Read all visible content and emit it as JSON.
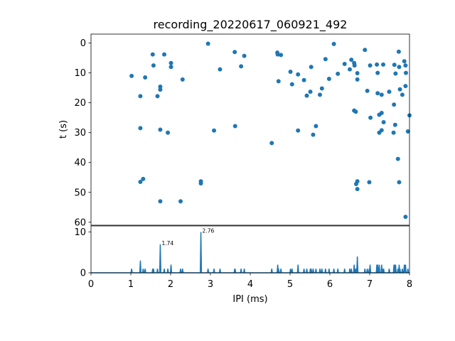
{
  "chart_data": [
    {
      "type": "scatter",
      "title": "recording_20220617_060921_492",
      "ylabel": "t (s)",
      "xlim": [
        0,
        8
      ],
      "ylim": [
        61,
        -3
      ],
      "y_inverted": true,
      "yticks": [
        "0",
        "10",
        "20",
        "30",
        "40",
        "50",
        "60"
      ],
      "marker_color": "#1f77b4",
      "points": [
        [
          1.02,
          11
        ],
        [
          1.24,
          17.8
        ],
        [
          1.24,
          28.5
        ],
        [
          1.24,
          46.5
        ],
        [
          1.31,
          45.5
        ],
        [
          1.36,
          11.5
        ],
        [
          1.55,
          3.8
        ],
        [
          1.57,
          7.5
        ],
        [
          1.67,
          17.8
        ],
        [
          1.74,
          14.6
        ],
        [
          1.74,
          15.6
        ],
        [
          1.74,
          29.0
        ],
        [
          1.74,
          53.0
        ],
        [
          1.84,
          3.8
        ],
        [
          1.93,
          30.0
        ],
        [
          2.01,
          6.7
        ],
        [
          2.01,
          8.0
        ],
        [
          2.25,
          53.0
        ],
        [
          2.3,
          12.2
        ],
        [
          2.76,
          46.3
        ],
        [
          2.76,
          47.0
        ],
        [
          2.94,
          0.2
        ],
        [
          3.09,
          29.3
        ],
        [
          3.24,
          8.8
        ],
        [
          3.61,
          3.0
        ],
        [
          3.62,
          27.8
        ],
        [
          3.77,
          7.8
        ],
        [
          3.85,
          4.3
        ],
        [
          4.54,
          33.5
        ],
        [
          4.68,
          3.2
        ],
        [
          4.69,
          3.8
        ],
        [
          4.71,
          12.8
        ],
        [
          4.77,
          4.0
        ],
        [
          5.01,
          9.6
        ],
        [
          5.05,
          13.8
        ],
        [
          5.2,
          10.5
        ],
        [
          5.2,
          29.3
        ],
        [
          5.35,
          12.4
        ],
        [
          5.42,
          17.6
        ],
        [
          5.51,
          16.3
        ],
        [
          5.53,
          8.0
        ],
        [
          5.58,
          30.7
        ],
        [
          5.65,
          27.8
        ],
        [
          5.75,
          17.3
        ],
        [
          5.8,
          15.2
        ],
        [
          5.89,
          5.4
        ],
        [
          5.98,
          12.0
        ],
        [
          6.1,
          0.3
        ],
        [
          6.2,
          10.3
        ],
        [
          6.37,
          7.0
        ],
        [
          6.5,
          8.8
        ],
        [
          6.54,
          5.6
        ],
        [
          6.61,
          6.7
        ],
        [
          6.62,
          7.5
        ],
        [
          6.61,
          22.6
        ],
        [
          6.65,
          23.0
        ],
        [
          6.66,
          47.2
        ],
        [
          6.69,
          46.3
        ],
        [
          6.69,
          48.9
        ],
        [
          6.69,
          10.1
        ],
        [
          6.69,
          12.2
        ],
        [
          6.88,
          2.3
        ],
        [
          6.94,
          16.0
        ],
        [
          6.99,
          46.6
        ],
        [
          7.01,
          7.5
        ],
        [
          7.02,
          25.0
        ],
        [
          7.18,
          7.2
        ],
        [
          7.2,
          10.0
        ],
        [
          7.2,
          16.8
        ],
        [
          7.24,
          30.0
        ],
        [
          7.24,
          24.0
        ],
        [
          7.3,
          23.4
        ],
        [
          7.3,
          29.2
        ],
        [
          7.3,
          17.3
        ],
        [
          7.34,
          7.2
        ],
        [
          7.35,
          26.5
        ],
        [
          7.49,
          16.3
        ],
        [
          7.61,
          20.6
        ],
        [
          7.62,
          7.3
        ],
        [
          7.65,
          10.2
        ],
        [
          7.6,
          30.0
        ],
        [
          7.64,
          27.4
        ],
        [
          7.71,
          38.8
        ],
        [
          7.73,
          2.9
        ],
        [
          7.74,
          8.0
        ],
        [
          7.74,
          46.6
        ],
        [
          7.76,
          15.5
        ],
        [
          7.82,
          17.3
        ],
        [
          7.87,
          6.1
        ],
        [
          7.9,
          7.5
        ],
        [
          7.9,
          14.4
        ],
        [
          7.91,
          10.0
        ],
        [
          7.9,
          58.2
        ],
        [
          7.96,
          29.6
        ],
        [
          8.0,
          24.2
        ]
      ]
    },
    {
      "type": "line",
      "xlabel": "IPI (ms)",
      "xlim": [
        0,
        8
      ],
      "ylim": [
        0,
        11.5
      ],
      "xticks": [
        "0",
        "1",
        "2",
        "3",
        "4",
        "5",
        "6",
        "7",
        "8"
      ],
      "yticks": [
        "0",
        "10"
      ],
      "line_color": "#1f77b4",
      "spikes": [
        [
          1.02,
          1
        ],
        [
          1.24,
          3
        ],
        [
          1.31,
          1
        ],
        [
          1.36,
          1
        ],
        [
          1.55,
          1
        ],
        [
          1.57,
          1
        ],
        [
          1.67,
          1
        ],
        [
          1.74,
          7
        ],
        [
          1.84,
          1
        ],
        [
          1.93,
          1
        ],
        [
          2.01,
          2
        ],
        [
          2.25,
          1
        ],
        [
          2.3,
          1
        ],
        [
          2.76,
          10
        ],
        [
          2.94,
          1
        ],
        [
          3.09,
          1
        ],
        [
          3.24,
          1
        ],
        [
          3.61,
          1
        ],
        [
          3.62,
          1
        ],
        [
          3.77,
          1
        ],
        [
          3.85,
          1
        ],
        [
          4.54,
          1
        ],
        [
          4.69,
          2
        ],
        [
          4.71,
          1
        ],
        [
          4.77,
          1
        ],
        [
          5.01,
          1
        ],
        [
          5.05,
          1
        ],
        [
          5.2,
          2
        ],
        [
          5.35,
          1
        ],
        [
          5.42,
          1
        ],
        [
          5.51,
          1
        ],
        [
          5.53,
          1
        ],
        [
          5.58,
          1
        ],
        [
          5.65,
          1
        ],
        [
          5.75,
          1
        ],
        [
          5.8,
          1
        ],
        [
          5.89,
          1
        ],
        [
          5.98,
          1
        ],
        [
          6.1,
          1
        ],
        [
          6.2,
          1
        ],
        [
          6.37,
          1
        ],
        [
          6.5,
          1
        ],
        [
          6.54,
          1
        ],
        [
          6.61,
          2
        ],
        [
          6.65,
          1
        ],
        [
          6.69,
          4
        ],
        [
          6.88,
          1
        ],
        [
          6.94,
          1
        ],
        [
          6.99,
          1
        ],
        [
          7.01,
          2
        ],
        [
          7.18,
          2
        ],
        [
          7.2,
          2
        ],
        [
          7.24,
          2
        ],
        [
          7.3,
          2
        ],
        [
          7.34,
          1
        ],
        [
          7.35,
          1
        ],
        [
          7.49,
          1
        ],
        [
          7.61,
          2
        ],
        [
          7.62,
          2
        ],
        [
          7.65,
          2
        ],
        [
          7.71,
          1
        ],
        [
          7.74,
          2
        ],
        [
          7.76,
          1
        ],
        [
          7.82,
          1
        ],
        [
          7.87,
          2
        ],
        [
          7.9,
          2
        ],
        [
          7.96,
          1
        ]
      ],
      "annotations": [
        {
          "x": 1.74,
          "y": 7,
          "text": "1.74"
        },
        {
          "x": 2.76,
          "y": 10,
          "text": "2.76"
        }
      ]
    }
  ]
}
